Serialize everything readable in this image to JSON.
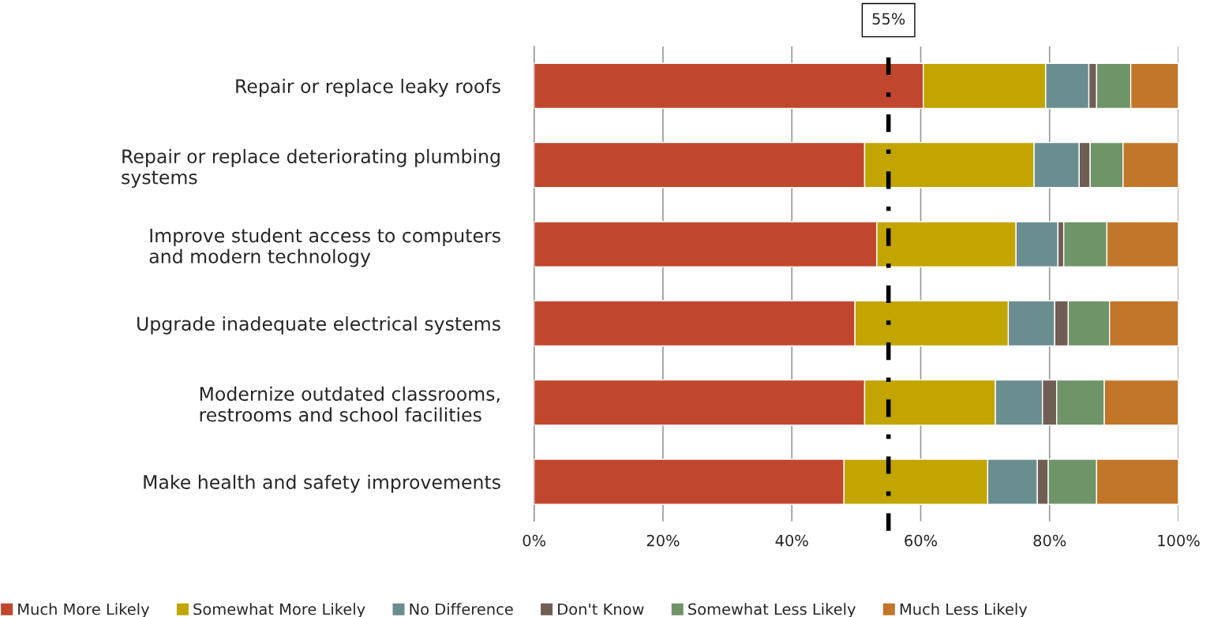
{
  "chart_data": {
    "type": "bar",
    "orientation": "horizontal",
    "stacked": true,
    "categories": [
      "Repair or replace leaky roofs",
      "Repair or replace deteriorating plumbing\nsystems",
      "Improve student access to computers\nand modern technology",
      "Upgrade inadequate electrical systems",
      "Modernize outdated classrooms,\nrestrooms and school facilities",
      "Make health and safety improvements"
    ],
    "series": [
      {
        "name": "Much More Likely",
        "color": "#c0472e",
        "values": [
          60.4,
          51.3,
          53.2,
          49.8,
          51.3,
          48.1
        ]
      },
      {
        "name": "Somewhat More Likely",
        "color": "#c2a500",
        "values": [
          19.0,
          26.3,
          21.6,
          23.8,
          20.3,
          22.3
        ]
      },
      {
        "name": "No Difference",
        "color": "#6a8e8f",
        "values": [
          6.7,
          7.0,
          6.5,
          7.2,
          7.3,
          7.7
        ]
      },
      {
        "name": "Don't Know",
        "color": "#705e54",
        "values": [
          1.2,
          1.7,
          0.9,
          2.1,
          2.2,
          1.7
        ]
      },
      {
        "name": "Somewhat Less Likely",
        "color": "#6f9468",
        "values": [
          5.3,
          5.1,
          6.7,
          6.4,
          7.4,
          7.5
        ]
      },
      {
        "name": "Much Less Likely",
        "color": "#c27629",
        "values": [
          7.4,
          8.6,
          11.1,
          10.7,
          11.5,
          12.7
        ]
      }
    ],
    "xlim": [
      0,
      100
    ],
    "xticks": [
      {
        "value": 0,
        "label": "0%"
      },
      {
        "value": 20,
        "label": "20%"
      },
      {
        "value": 40,
        "label": "40%"
      },
      {
        "value": 60,
        "label": "60%"
      },
      {
        "value": 80,
        "label": "80%"
      },
      {
        "value": 100,
        "label": "100%"
      }
    ],
    "ref_lines": [
      {
        "axis": "x",
        "value": 55,
        "label": "55%",
        "color": "#000000",
        "line_style": "dashdot"
      }
    ],
    "grid": "x",
    "legend": "bottom"
  }
}
